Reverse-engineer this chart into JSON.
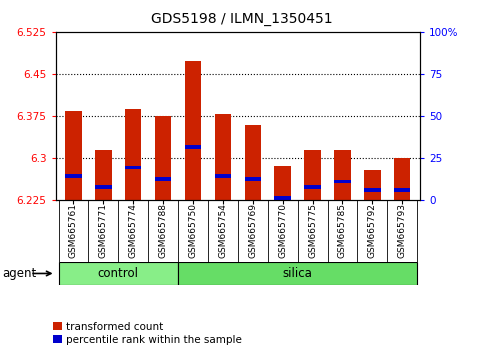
{
  "title": "GDS5198 / ILMN_1350451",
  "samples": [
    "GSM665761",
    "GSM665771",
    "GSM665774",
    "GSM665788",
    "GSM665750",
    "GSM665754",
    "GSM665769",
    "GSM665770",
    "GSM665775",
    "GSM665785",
    "GSM665792",
    "GSM665793"
  ],
  "n_control": 4,
  "n_silica": 8,
  "transformed_count": [
    6.383,
    6.315,
    6.388,
    6.375,
    6.473,
    6.378,
    6.358,
    6.285,
    6.315,
    6.315,
    6.278,
    6.3
  ],
  "percentile_rank": [
    6.268,
    6.248,
    6.283,
    6.263,
    6.32,
    6.268,
    6.263,
    6.228,
    6.248,
    6.258,
    6.243,
    6.243
  ],
  "y_min": 6.225,
  "y_max": 6.525,
  "y_ticks_left": [
    6.225,
    6.3,
    6.375,
    6.45,
    6.525
  ],
  "y_ticks_right": [
    0,
    25,
    50,
    75,
    100
  ],
  "bar_color": "#cc2200",
  "blue_color": "#0000cc",
  "control_color": "#88ee88",
  "silica_color": "#66dd66",
  "xticklabel_bg": "#cccccc",
  "bar_width": 0.55,
  "legend_items": [
    "transformed count",
    "percentile rank within the sample"
  ],
  "xlabel_agent": "agent",
  "group_labels": [
    "control",
    "silica"
  ],
  "title_fontsize": 10,
  "tick_fontsize": 7.5,
  "blue_bar_height": 0.007
}
